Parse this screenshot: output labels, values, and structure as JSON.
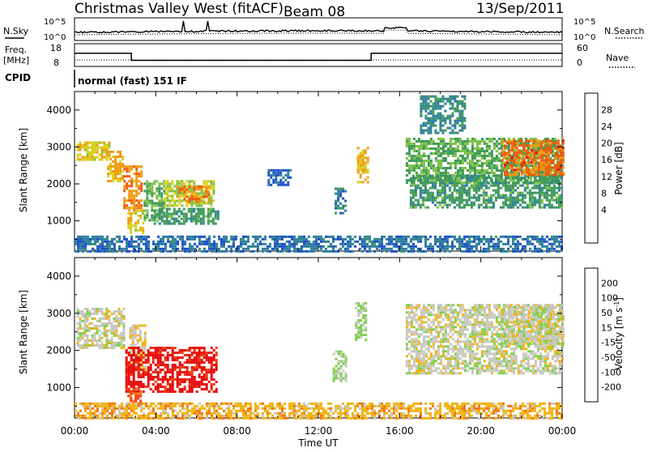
{
  "header": {
    "station": "Christmas Valley West (fitACF)",
    "beam": "Beam 08",
    "date": "13/Sep/2011"
  },
  "strip": {
    "nsky_label": "N.Sky",
    "nsky_ticks": [
      "10^5",
      "10^0"
    ],
    "nsearch_label": "N.Search",
    "nsearch_ticks": [
      "10^5",
      "10^0"
    ],
    "freq_label_1": "Freq.",
    "freq_label_2": "[MHz]",
    "freq_ticks": [
      "18",
      "8"
    ],
    "nave_label": "Nave",
    "nave_ticks": [
      "60",
      "0"
    ],
    "cpid_label": "CPID",
    "cpid_value": "normal (fast) 151 IF"
  },
  "axes": {
    "xlabel": "Time UT",
    "x_ticks": [
      "00:00",
      "04:00",
      "08:00",
      "12:00",
      "16:00",
      "20:00",
      "00:00"
    ],
    "ylabel": "Slant Range [km]",
    "y_ticks": [
      "1000",
      "2000",
      "3000",
      "4000"
    ]
  },
  "colors": {
    "power_scale": [
      "#0a14e6",
      "#1e4fc8",
      "#2e7f9a",
      "#3f9a5a",
      "#7dc24a",
      "#d8d020",
      "#f09a10",
      "#f05a0a",
      "#e61010"
    ],
    "velocity_scale": [
      "#1e3cc8",
      "#1e70a0",
      "#2a9a6a",
      "#7ed04a",
      "#c8c8c0",
      "#f0b414",
      "#f07814",
      "#f03c0a",
      "#e60a0a"
    ]
  },
  "chart_data": [
    {
      "type": "heatmap",
      "panel": "power",
      "x_unit": "hours UT",
      "xlim": [
        0,
        24
      ],
      "y_unit": "km",
      "ylim": [
        180,
        4500
      ],
      "colorbar": {
        "label": "Power [dB]",
        "ticks": [
          "28",
          "24",
          "20",
          "16",
          "12",
          "8",
          "4"
        ],
        "range": [
          0,
          32
        ]
      },
      "regions": [
        {
          "t0": 0.1,
          "t1": 1.7,
          "r0": 2650,
          "r1": 3150,
          "value": 20
        },
        {
          "t0": 1.6,
          "t1": 2.4,
          "r0": 2050,
          "r1": 2900,
          "value": 22
        },
        {
          "t0": 2.4,
          "t1": 3.3,
          "r0": 1300,
          "r1": 2500,
          "value": 24
        },
        {
          "t0": 2.6,
          "t1": 3.4,
          "r0": 700,
          "r1": 1300,
          "value": 20
        },
        {
          "t0": 3.4,
          "t1": 4.4,
          "r0": 1000,
          "r1": 2100,
          "value": 14
        },
        {
          "t0": 4.4,
          "t1": 6.9,
          "r0": 1400,
          "r1": 2100,
          "value": 18
        },
        {
          "t0": 5.0,
          "t1": 6.6,
          "r0": 1550,
          "r1": 1950,
          "value": 24
        },
        {
          "t0": 3.9,
          "t1": 7.1,
          "r0": 950,
          "r1": 1350,
          "value": 12
        },
        {
          "t0": 9.5,
          "t1": 10.6,
          "r0": 2000,
          "r1": 2400,
          "value": 6
        },
        {
          "t0": 12.8,
          "t1": 13.3,
          "r0": 1200,
          "r1": 1900,
          "value": 9
        },
        {
          "t0": 13.9,
          "t1": 14.4,
          "r0": 2050,
          "r1": 3000,
          "value": 22
        },
        {
          "t0": 16.3,
          "t1": 24.0,
          "r0": 2050,
          "r1": 3250,
          "value": 14
        },
        {
          "t0": 16.5,
          "t1": 24.0,
          "r0": 1350,
          "r1": 2250,
          "value": 12
        },
        {
          "t0": 21.0,
          "t1": 24.0,
          "r0": 2250,
          "r1": 3200,
          "value": 26
        },
        {
          "t0": 17.0,
          "t1": 19.2,
          "r0": 3400,
          "r1": 4400,
          "value": 10
        },
        {
          "t0": 0.0,
          "t1": 24.0,
          "r0": 180,
          "r1": 600,
          "value": 8
        }
      ]
    },
    {
      "type": "heatmap",
      "panel": "velocity",
      "x_unit": "hours UT",
      "xlim": [
        0,
        24
      ],
      "y_unit": "km",
      "ylim": [
        180,
        4500
      ],
      "colorbar": {
        "label": "Velocity [m s^-1]",
        "ticks": [
          "200",
          "100",
          "50",
          "15",
          "-15",
          "-50",
          "-100",
          "-200"
        ],
        "range": [
          -250,
          250
        ]
      },
      "regions": [
        {
          "t0": 0.1,
          "t1": 2.4,
          "r0": 2100,
          "r1": 3150,
          "value": 0
        },
        {
          "t0": 2.7,
          "t1": 3.5,
          "r0": 1500,
          "r1": 2700,
          "value": -30
        },
        {
          "t0": 2.5,
          "t1": 7.0,
          "r0": 900,
          "r1": 2100,
          "value": -220
        },
        {
          "t0": 2.6,
          "t1": 3.2,
          "r0": 500,
          "r1": 1000,
          "value": -150
        },
        {
          "t0": 12.7,
          "t1": 13.3,
          "r0": 1200,
          "r1": 2000,
          "value": 40
        },
        {
          "t0": 13.8,
          "t1": 14.3,
          "r0": 2300,
          "r1": 3300,
          "value": 30
        },
        {
          "t0": 16.3,
          "t1": 24.0,
          "r0": 1400,
          "r1": 3250,
          "value": 0
        },
        {
          "t0": 21.0,
          "t1": 24.0,
          "r0": 2200,
          "r1": 3200,
          "value": 0
        },
        {
          "t0": 0.0,
          "t1": 24.0,
          "r0": 180,
          "r1": 600,
          "value": -60
        }
      ]
    }
  ],
  "frequency_mhz": [
    {
      "t0": 0.0,
      "t1": 2.8,
      "value": 14.5
    },
    {
      "t0": 2.8,
      "t1": 14.6,
      "value": 10.5
    },
    {
      "t0": 14.6,
      "t1": 24.0,
      "value": 14.5
    }
  ]
}
